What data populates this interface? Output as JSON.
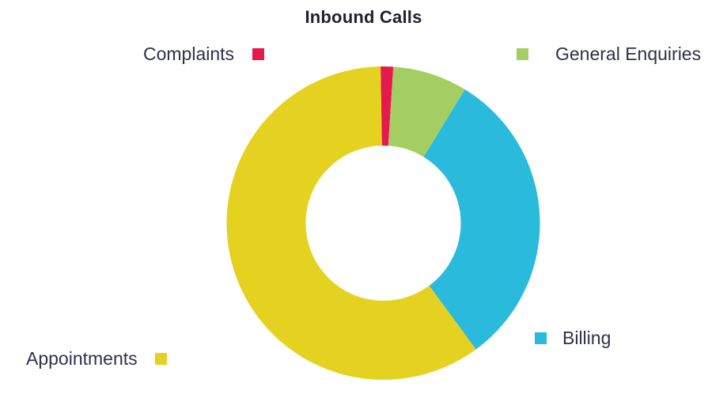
{
  "chart_data": {
    "type": "pie",
    "subtype": "donut",
    "title": "Inbound Calls",
    "direction": "clockwise",
    "start_angle_deg": -1,
    "inner_radius_ratio": 0.495,
    "legend_position": "labels placed around chart with square markers",
    "segments": [
      {
        "label": "Complaints",
        "value": 1.3,
        "color": "#e5194e"
      },
      {
        "label": "General Enquiries",
        "value": 7.7,
        "color": "#a5ce62"
      },
      {
        "label": "Billing",
        "value": 31.2,
        "color": "#2abadc"
      },
      {
        "label": "Appointments",
        "value": 59.8,
        "color": "#e5d220"
      }
    ]
  },
  "text_colors": {
    "title": "#221f30",
    "labels": "#30304c"
  },
  "background": "#ffffff"
}
